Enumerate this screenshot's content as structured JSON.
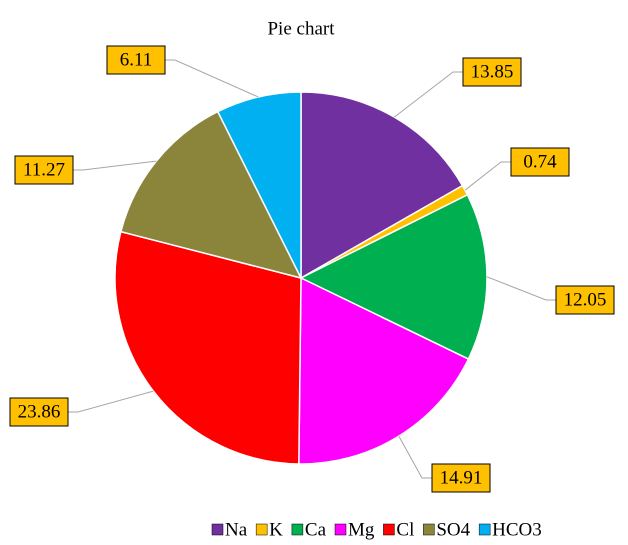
{
  "chart_data": {
    "type": "pie",
    "title": "Pie chart",
    "categories": [
      "Na",
      "K",
      "Ca",
      "Mg",
      "Cl",
      "SO4",
      "HCO3"
    ],
    "values": [
      13.85,
      0.74,
      12.05,
      14.91,
      23.86,
      11.27,
      6.11
    ],
    "colors": [
      "#7030a0",
      "#ffc000",
      "#00b050",
      "#ff00ff",
      "#ff0000",
      "#8b853c",
      "#00b0f0"
    ],
    "label_color": "#ffc000"
  }
}
